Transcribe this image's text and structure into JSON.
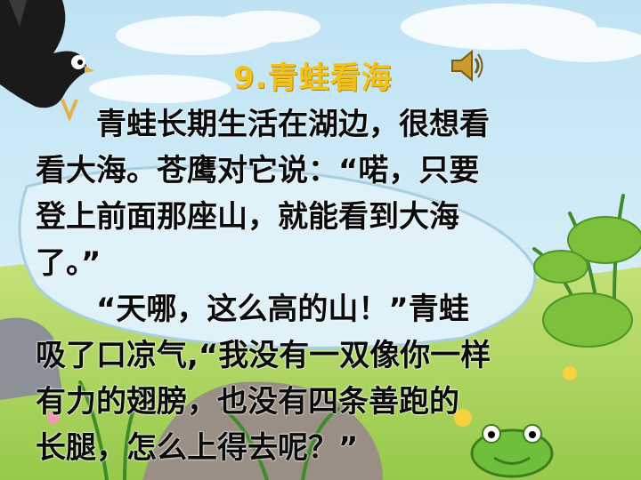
{
  "slide": {
    "title": "9.青蛙看海",
    "icons": {
      "speaker": "speaker-icon",
      "eagle": "eagle-illustration",
      "frog": "frog-illustration"
    },
    "paragraph1_lines": [
      "　　青蛙长期生活在湖边，很想看",
      "看大海。苍鹰对它说：“喏，只要",
      "登上前面那座山，就能看到大海",
      "了。”"
    ],
    "paragraph2_lines": [
      "　　“天哪，这么高的山！”青蛙",
      "吸了口凉气,“我没有一双像你一样",
      "有力的翅膀，也没有四条善跑的",
      "长腿，怎么上得去呢？”"
    ]
  }
}
